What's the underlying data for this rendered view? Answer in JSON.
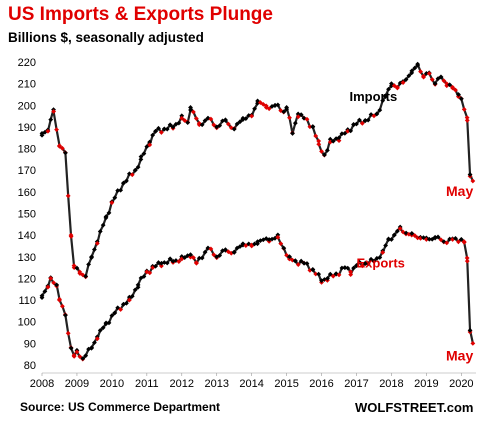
{
  "title": "US Imports & Exports Plunge",
  "subtitle": "Billions $, seasonally adjusted",
  "source": "Source: US Commerce Department",
  "brand": "WOLFSTREET.com",
  "colors": {
    "line": "#222222",
    "marker_black": "#000000",
    "marker_red": "#e00000",
    "title": "#e00000",
    "grid": "#d9d9d9"
  },
  "chart_data": {
    "type": "line",
    "title": "US Imports & Exports Plunge",
    "ylabel": "Billions $, seasonally adjusted",
    "xlabel": "",
    "ylim": [
      80,
      220
    ],
    "yticks": [
      80,
      90,
      100,
      110,
      120,
      130,
      140,
      150,
      160,
      170,
      180,
      190,
      200,
      210,
      220
    ],
    "xlim": [
      2008.0,
      2020.42
    ],
    "xticks": [
      "2008",
      "2009",
      "2010",
      "2011",
      "2012",
      "2013",
      "2014",
      "2015",
      "2016",
      "2017",
      "2018",
      "2019",
      "2020"
    ],
    "grid": false,
    "legend": "none",
    "series": [
      {
        "name": "Imports",
        "anchors": [
          [
            2008.0,
            187
          ],
          [
            2008.17,
            188
          ],
          [
            2008.33,
            198
          ],
          [
            2008.5,
            181
          ],
          [
            2008.67,
            178
          ],
          [
            2008.83,
            140
          ],
          [
            2008.92,
            125
          ],
          [
            2009.08,
            123
          ],
          [
            2009.25,
            121
          ],
          [
            2009.42,
            130
          ],
          [
            2009.58,
            137
          ],
          [
            2009.83,
            148
          ],
          [
            2010.0,
            155
          ],
          [
            2010.33,
            164
          ],
          [
            2010.67,
            170
          ],
          [
            2010.83,
            175
          ],
          [
            2011.08,
            183
          ],
          [
            2011.25,
            188
          ],
          [
            2011.5,
            189
          ],
          [
            2011.75,
            190
          ],
          [
            2012.0,
            194
          ],
          [
            2012.17,
            192
          ],
          [
            2012.25,
            199
          ],
          [
            2012.5,
            191
          ],
          [
            2012.75,
            194
          ],
          [
            2013.0,
            190
          ],
          [
            2013.25,
            193
          ],
          [
            2013.5,
            189
          ],
          [
            2013.75,
            194
          ],
          [
            2014.0,
            195
          ],
          [
            2014.17,
            202
          ],
          [
            2014.42,
            199
          ],
          [
            2014.67,
            200
          ],
          [
            2014.92,
            197
          ],
          [
            2015.0,
            199
          ],
          [
            2015.17,
            187
          ],
          [
            2015.33,
            196
          ],
          [
            2015.5,
            194
          ],
          [
            2015.75,
            190
          ],
          [
            2015.92,
            182
          ],
          [
            2016.08,
            177
          ],
          [
            2016.25,
            183
          ],
          [
            2016.5,
            185
          ],
          [
            2016.75,
            188
          ],
          [
            2016.92,
            191
          ],
          [
            2017.25,
            193
          ],
          [
            2017.58,
            196
          ],
          [
            2017.83,
            204
          ],
          [
            2018.0,
            210
          ],
          [
            2018.17,
            208
          ],
          [
            2018.33,
            211
          ],
          [
            2018.58,
            215
          ],
          [
            2018.75,
            219
          ],
          [
            2018.92,
            213
          ],
          [
            2019.08,
            215
          ],
          [
            2019.25,
            210
          ],
          [
            2019.42,
            213
          ],
          [
            2019.58,
            210
          ],
          [
            2019.75,
            208
          ],
          [
            2019.92,
            205
          ],
          [
            2020.0,
            203
          ],
          [
            2020.17,
            193
          ],
          [
            2020.25,
            168
          ],
          [
            2020.33,
            165
          ]
        ]
      },
      {
        "name": "Exports",
        "anchors": [
          [
            2008.0,
            112
          ],
          [
            2008.17,
            116
          ],
          [
            2008.25,
            120
          ],
          [
            2008.42,
            117
          ],
          [
            2008.5,
            110
          ],
          [
            2008.67,
            103
          ],
          [
            2008.83,
            88
          ],
          [
            2008.92,
            84
          ],
          [
            2009.0,
            86
          ],
          [
            2009.17,
            83
          ],
          [
            2009.42,
            88
          ],
          [
            2009.58,
            93
          ],
          [
            2009.83,
            99
          ],
          [
            2010.08,
            104
          ],
          [
            2010.33,
            108
          ],
          [
            2010.5,
            110
          ],
          [
            2010.75,
            117
          ],
          [
            2011.0,
            123
          ],
          [
            2011.17,
            125
          ],
          [
            2011.42,
            127
          ],
          [
            2011.75,
            128
          ],
          [
            2012.0,
            129
          ],
          [
            2012.25,
            131
          ],
          [
            2012.42,
            127
          ],
          [
            2012.75,
            134
          ],
          [
            2013.0,
            130
          ],
          [
            2013.25,
            133
          ],
          [
            2013.5,
            132
          ],
          [
            2013.75,
            136
          ],
          [
            2014.0,
            135
          ],
          [
            2014.17,
            137
          ],
          [
            2014.5,
            138
          ],
          [
            2014.75,
            139
          ],
          [
            2014.92,
            134
          ],
          [
            2015.08,
            129
          ],
          [
            2015.25,
            128
          ],
          [
            2015.5,
            127
          ],
          [
            2015.75,
            124
          ],
          [
            2016.0,
            119
          ],
          [
            2016.17,
            120
          ],
          [
            2016.42,
            122
          ],
          [
            2016.67,
            125
          ],
          [
            2016.83,
            123
          ],
          [
            2017.0,
            126
          ],
          [
            2017.25,
            127
          ],
          [
            2017.5,
            128
          ],
          [
            2017.75,
            132
          ],
          [
            2017.92,
            138
          ],
          [
            2018.08,
            140
          ],
          [
            2018.25,
            143
          ],
          [
            2018.42,
            141
          ],
          [
            2018.58,
            140
          ],
          [
            2018.83,
            139
          ],
          [
            2019.0,
            138
          ],
          [
            2019.25,
            139
          ],
          [
            2019.5,
            137
          ],
          [
            2019.75,
            138
          ],
          [
            2020.0,
            138
          ],
          [
            2020.08,
            137
          ],
          [
            2020.17,
            128
          ],
          [
            2020.25,
            96
          ],
          [
            2020.33,
            90
          ]
        ]
      }
    ],
    "annotations": [
      {
        "text": "Imports",
        "x": 2016.8,
        "y": 202,
        "color": "#000000"
      },
      {
        "text": "Exports",
        "x": 2017.0,
        "y": 125,
        "color": "#e00000"
      },
      {
        "text": "May",
        "x": 2020.3,
        "y": 158,
        "color": "#e00000"
      },
      {
        "text": "May",
        "x": 2020.3,
        "y": 82,
        "color": "#e00000"
      }
    ]
  }
}
